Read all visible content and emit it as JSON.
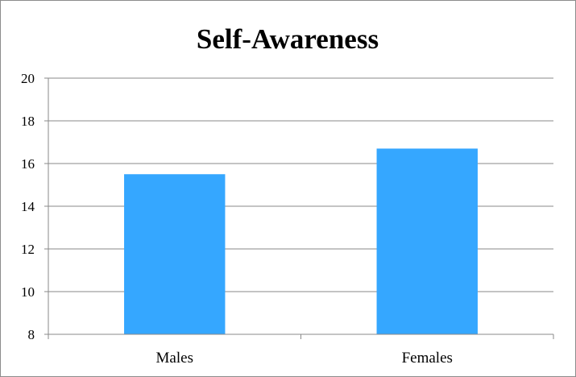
{
  "chart_data": {
    "type": "bar",
    "title": "Self-Awareness",
    "xlabel": "",
    "ylabel": "",
    "categories": [
      "Males",
      "Females"
    ],
    "values": [
      15.5,
      16.7
    ],
    "ylim": [
      8,
      20
    ],
    "yticks": [
      8,
      10,
      12,
      14,
      16,
      18,
      20
    ],
    "grid": true,
    "legend": "none",
    "bar_color": "#35a7ff",
    "grid_color": "#8a8a8a"
  }
}
